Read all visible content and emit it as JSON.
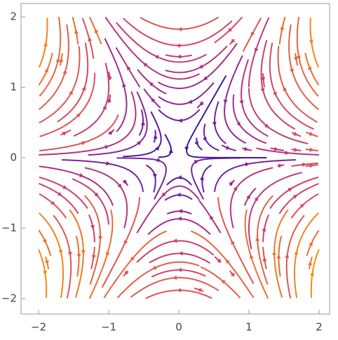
{
  "chart_data": {
    "type": "streamplot",
    "xlim": [
      -2,
      2
    ],
    "ylim": [
      -2,
      2
    ],
    "xticks": [
      {
        "value": -2,
        "label": "−2"
      },
      {
        "value": -1,
        "label": "−1"
      },
      0,
      1,
      2
    ],
    "yticks": [
      {
        "value": -2,
        "label": "−2"
      },
      {
        "value": -1,
        "label": "−1"
      },
      0,
      1,
      2
    ]
  }
}
